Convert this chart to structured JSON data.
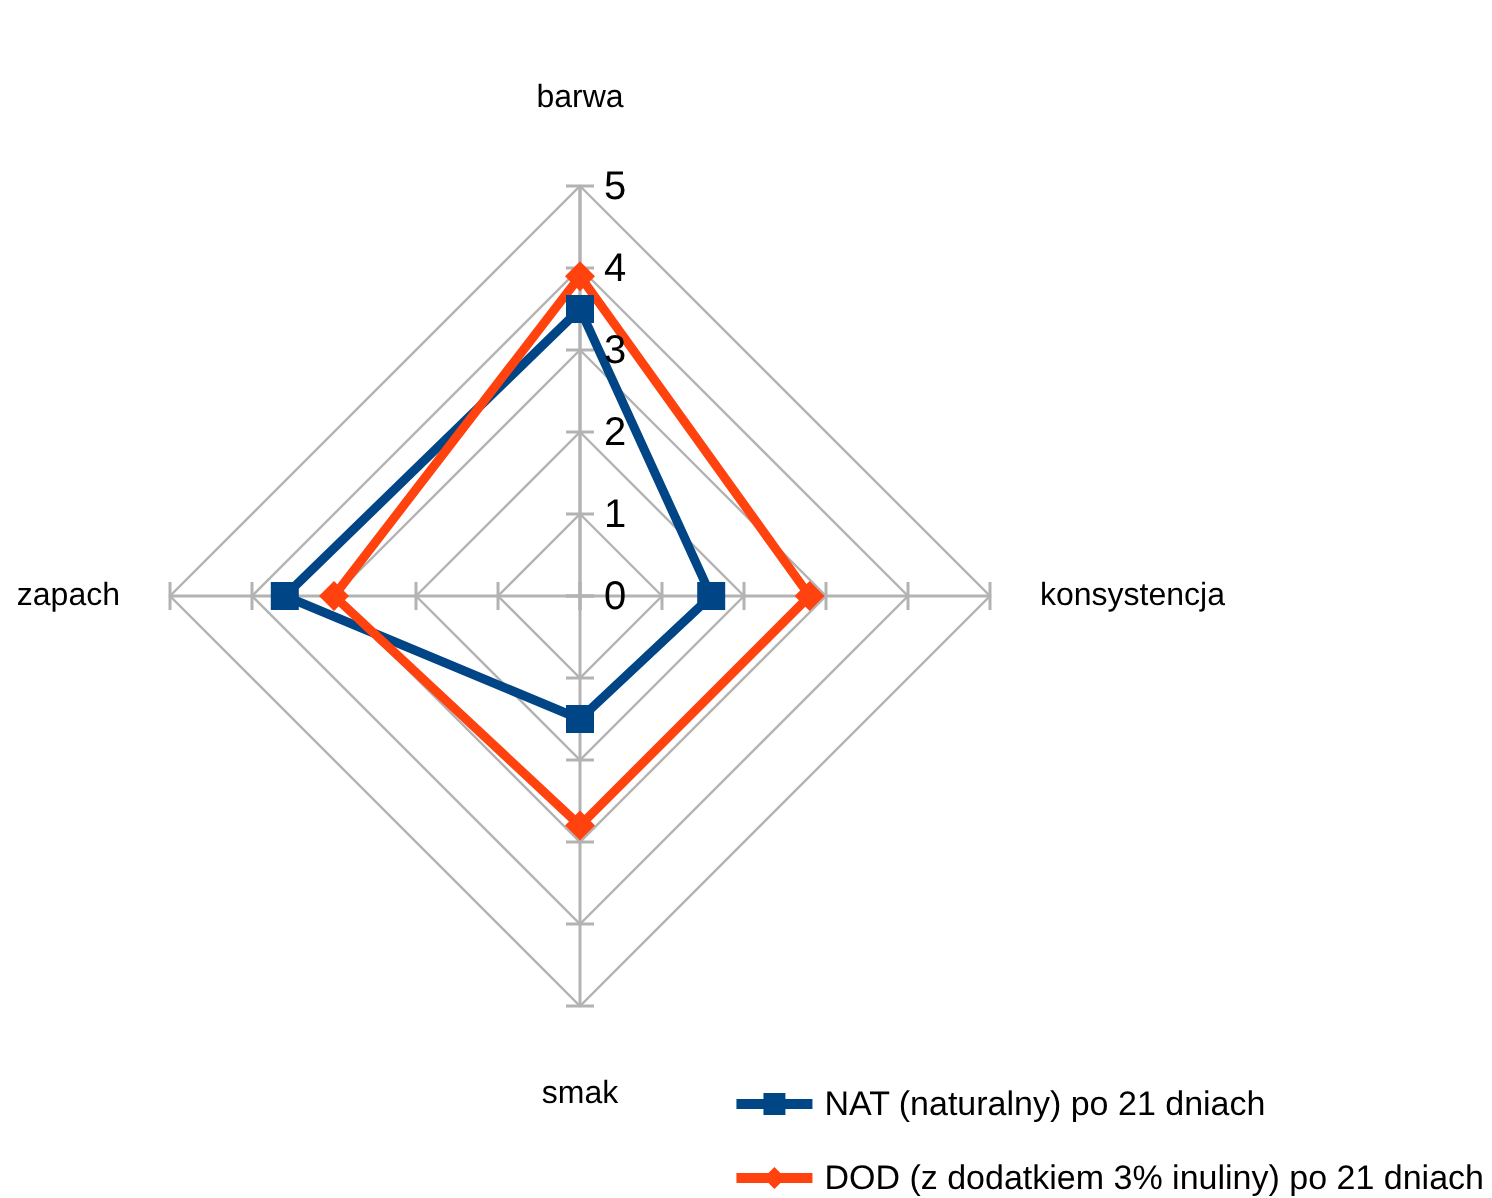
{
  "chart_data": {
    "type": "radar",
    "categories": [
      "barwa",
      "konsystencja",
      "smak",
      "zapach"
    ],
    "series": [
      {
        "name": "NAT (naturalny) po 21 dniach",
        "color": "#004586",
        "marker": "square",
        "values": [
          3.5,
          1.6,
          1.5,
          3.6
        ]
      },
      {
        "name": "DOD (z dodatkiem 3% inuliny) po 21 dniach",
        "color": "#ff420e",
        "marker": "diamond",
        "values": [
          3.9,
          2.8,
          2.8,
          3.0
        ]
      }
    ],
    "ylim": [
      0,
      5
    ],
    "yticks": [
      0,
      1,
      2,
      3,
      4,
      5
    ],
    "grid": true,
    "legend": "bottom right"
  }
}
